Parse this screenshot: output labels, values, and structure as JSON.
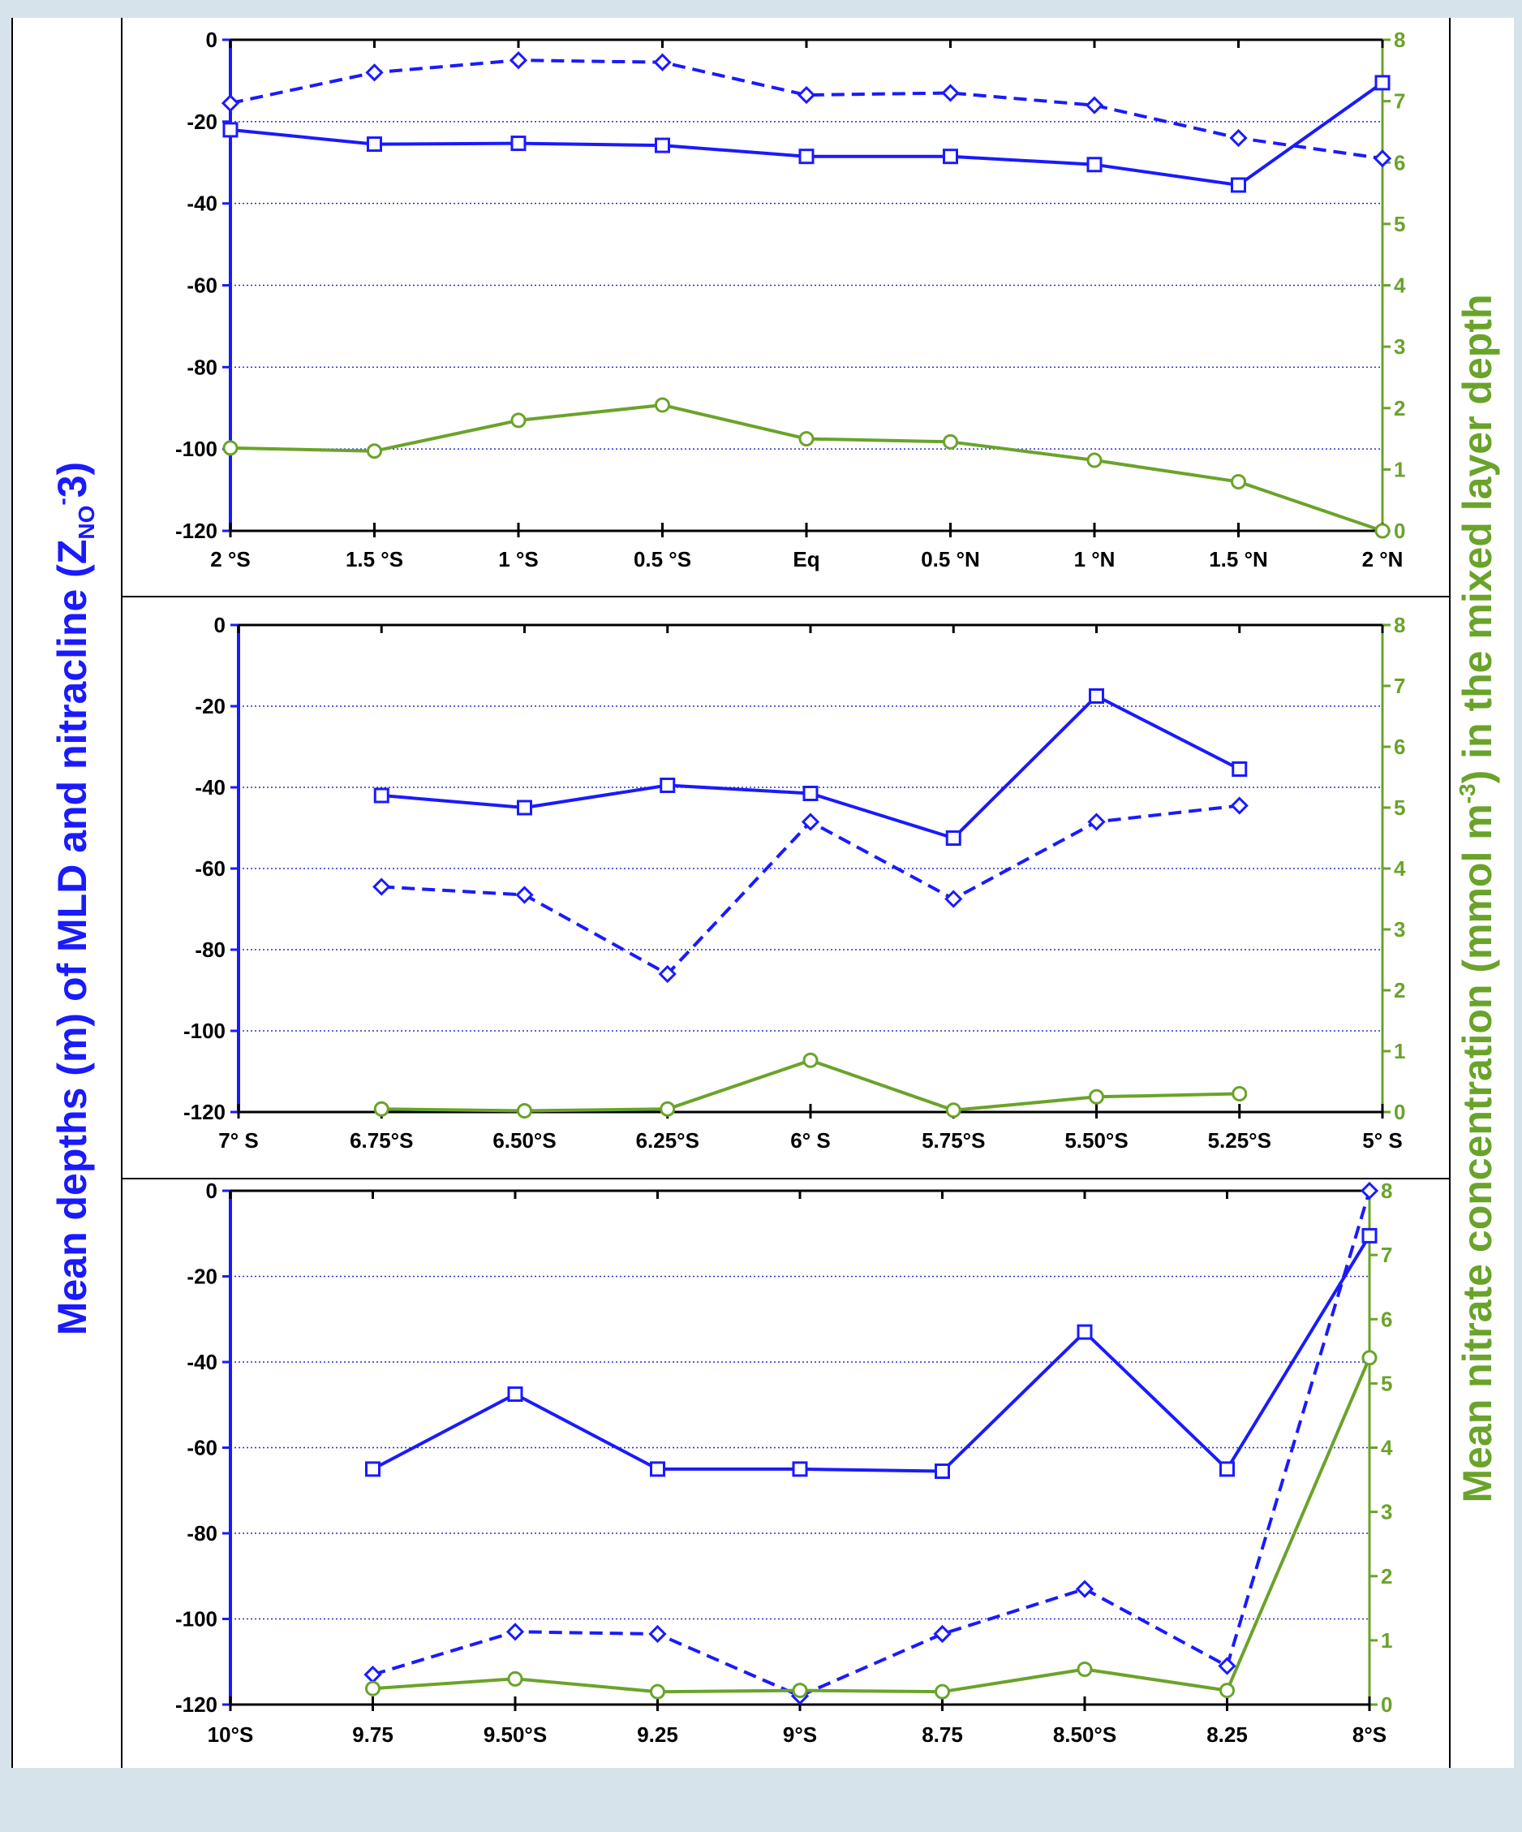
{
  "figure": {
    "left_title": {
      "main": "Mean depths (m) of MLD and nitracline (Z",
      "sub": "NO",
      "sup": "-",
      "tail": "3)"
    },
    "right_title": {
      "main": "Mean nitrate concentration (mmol m",
      "sup": "-3",
      "tail": ") in the mixed layer depth"
    }
  },
  "colors": {
    "blue": "#1a1aff",
    "green": "#6aa32a",
    "grid": "#2b2bd6",
    "axis_black": "#000000"
  },
  "chart_data": [
    {
      "type": "line",
      "categories": [
        "2 °S",
        "1.5 °S",
        "1 °S",
        "0.5 °S",
        "Eq",
        "0.5 °N",
        "1 °N",
        "1.5 °N",
        "2 °N"
      ],
      "ylim_left": [
        -120,
        0
      ],
      "yticks_left": [
        0,
        -20,
        -40,
        -60,
        -80,
        -100,
        -120
      ],
      "ylim_right": [
        0,
        8
      ],
      "yticks_right": [
        0,
        1,
        2,
        3,
        4,
        5,
        6,
        7,
        8
      ],
      "grid": true,
      "series": [
        {
          "style": "solid-blue-square",
          "axis": "left",
          "values": [
            -22,
            -25.5,
            -25.3,
            -25.8,
            -28.5,
            -28.5,
            -30.5,
            -35.5,
            -10.5
          ]
        },
        {
          "style": "dashed-blue-diamond",
          "axis": "left",
          "values": [
            -15.5,
            -8,
            -5,
            -5.5,
            -13.5,
            -13,
            -16,
            -24,
            -29
          ]
        },
        {
          "style": "solid-green-circle",
          "axis": "right",
          "values": [
            1.35,
            1.3,
            1.8,
            2.05,
            1.5,
            1.45,
            1.15,
            0.8,
            0.0
          ]
        }
      ]
    },
    {
      "type": "line",
      "categories": [
        "7° S",
        "6.75°S",
        "6.50°S",
        "6.25°S",
        "6° S",
        "5.75°S",
        "5.50°S",
        "5.25°S",
        "5° S"
      ],
      "ylim_left": [
        -120,
        0
      ],
      "yticks_left": [
        0,
        -20,
        -40,
        -60,
        -80,
        -100,
        -120
      ],
      "ylim_right": [
        0,
        8
      ],
      "yticks_right": [
        0,
        1,
        2,
        3,
        4,
        5,
        6,
        7,
        8
      ],
      "grid": true,
      "series": [
        {
          "style": "solid-blue-square",
          "axis": "left",
          "values": [
            null,
            -42,
            -45,
            -39.5,
            -41.5,
            -52.5,
            -17.5,
            -35.5,
            null
          ]
        },
        {
          "style": "dashed-blue-diamond",
          "axis": "left",
          "values": [
            null,
            -64.5,
            -66.5,
            -86,
            -48.5,
            -67.5,
            -48.5,
            -44.5,
            null
          ]
        },
        {
          "style": "solid-green-circle",
          "axis": "right",
          "values": [
            null,
            0.05,
            0.02,
            0.05,
            0.85,
            0.03,
            0.25,
            0.3,
            null
          ]
        }
      ]
    },
    {
      "type": "line",
      "categories": [
        "10°S",
        "9.75",
        "9.50°S",
        "9.25",
        "9°S",
        "8.75",
        "8.50°S",
        "8.25",
        "8°S"
      ],
      "ylim_left": [
        -120,
        0
      ],
      "yticks_left": [
        0,
        -20,
        -40,
        -60,
        -80,
        -100,
        -120
      ],
      "ylim_right": [
        0,
        8
      ],
      "yticks_right": [
        0,
        1,
        2,
        3,
        4,
        5,
        6,
        7,
        8
      ],
      "grid": true,
      "series": [
        {
          "style": "solid-blue-square",
          "axis": "left",
          "values": [
            null,
            -65,
            -47.5,
            -65,
            -65,
            -65.5,
            -33,
            -65,
            -10.5
          ]
        },
        {
          "style": "dashed-blue-diamond",
          "axis": "left",
          "values": [
            null,
            -113,
            -103,
            -103.5,
            -118,
            -103.5,
            -93,
            -111,
            0
          ]
        },
        {
          "style": "solid-green-circle",
          "axis": "right",
          "values": [
            null,
            0.25,
            0.4,
            0.2,
            0.22,
            0.2,
            0.55,
            0.22,
            5.4
          ]
        }
      ]
    }
  ]
}
